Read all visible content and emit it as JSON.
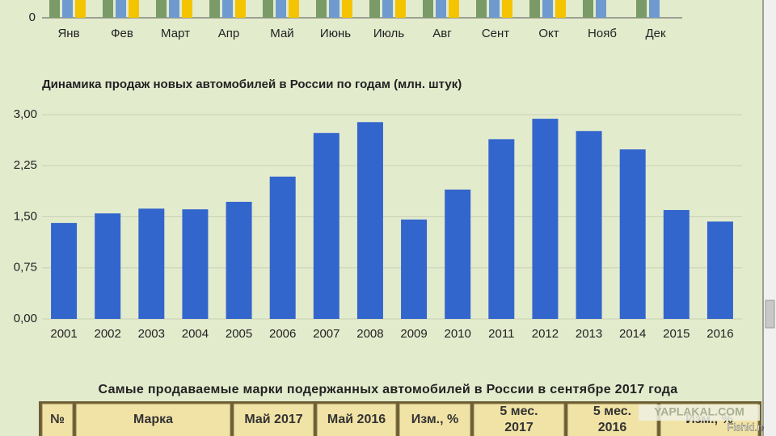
{
  "chart_data": [
    {
      "type": "bar",
      "categories": [
        "Янв",
        "Фев",
        "Март",
        "Апр",
        "Май",
        "Июнь",
        "Июль",
        "Авг",
        "Сент",
        "Окт",
        "Нояб",
        "Дек"
      ],
      "yticks": [
        0
      ]
    },
    {
      "type": "bar",
      "title": "Динамика продаж новых автомобилей в России по годам (млн. штук)",
      "categories": [
        "2001",
        "2002",
        "2003",
        "2004",
        "2005",
        "2006",
        "2007",
        "2008",
        "2009",
        "2010",
        "2011",
        "2012",
        "2013",
        "2014",
        "2015",
        "2016"
      ],
      "values": [
        1.41,
        1.55,
        1.62,
        1.61,
        1.72,
        2.09,
        2.73,
        2.89,
        1.46,
        1.9,
        2.64,
        2.94,
        2.76,
        2.49,
        1.6,
        1.43
      ],
      "color": "#3366cc",
      "ylim": [
        0,
        3
      ],
      "yticks": [
        {
          "value": 0,
          "label": "0,00"
        },
        {
          "value": 0.75,
          "label": "0,75"
        },
        {
          "value": 1.5,
          "label": "1,50"
        },
        {
          "value": 2.25,
          "label": "2,25"
        },
        {
          "value": 3,
          "label": "3,00"
        }
      ],
      "grid": true
    }
  ],
  "table": {
    "title": "Самые продаваемые марки подержанных автомобилей в России в сентябре 2017 года",
    "header": [
      "№",
      "Марка",
      "Май 2017",
      "Май 2016",
      "Изм., %",
      "5 мес. 2017",
      "5 мес. 2016",
      "Изм., %"
    ]
  },
  "watermarks": [
    "YAPLAKAL.COM",
    "Fishki.net"
  ]
}
